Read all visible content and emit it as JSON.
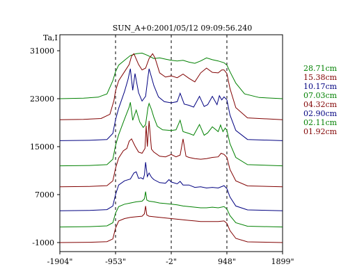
{
  "chart_data": {
    "type": "line",
    "title": "SUN_A+0:2001/05/12 09:09:56.240",
    "ylabel": "Ta,I",
    "xlabel": "",
    "xlim": [
      -1904,
      1899
    ],
    "ylim": [
      -1000,
      31000
    ],
    "x_ticks": [
      -1904,
      -953,
      -2,
      948,
      1899
    ],
    "x_tick_labels": [
      "-1904\"",
      "-953\"",
      "-2\"",
      "948\"",
      "1899\""
    ],
    "y_ticks": [
      -1000,
      7000,
      15000,
      23000,
      31000
    ],
    "y_tick_labels": [
      "-1000",
      "7000",
      "15000",
      "23000",
      "31000"
    ],
    "reference_lines_x": [
      -953,
      -2,
      948
    ],
    "legend_position": "right",
    "series": [
      {
        "name": "28.71cm",
        "color": "#008000",
        "offset": 23000,
        "x": [
          -1904,
          -1500,
          -1250,
          -1100,
          -1000,
          -953,
          -900,
          -800,
          -700,
          -600,
          -500,
          -400,
          -300,
          -200,
          -100,
          -2,
          100,
          200,
          300,
          400,
          500,
          600,
          700,
          800,
          900,
          948,
          1000,
          1100,
          1250,
          1500,
          1899
        ],
        "y": [
          0,
          80,
          250,
          800,
          3000,
          4500,
          5600,
          6400,
          7200,
          7500,
          7600,
          7200,
          6700,
          6800,
          6600,
          6400,
          6300,
          6400,
          6100,
          5900,
          6300,
          6800,
          6500,
          6300,
          6000,
          5600,
          4500,
          2600,
          800,
          200,
          0
        ]
      },
      {
        "name": "15.38cm",
        "color": "#800000",
        "offset": 19500,
        "x": [
          -1904,
          -1500,
          -1200,
          -1050,
          -980,
          -953,
          -900,
          -800,
          -720,
          -680,
          -640,
          -560,
          -500,
          -440,
          -380,
          -320,
          -280,
          -200,
          -100,
          -2,
          100,
          200,
          300,
          400,
          500,
          600,
          700,
          800,
          860,
          900,
          948,
          1000,
          1100,
          1300,
          1899
        ],
        "y": [
          0,
          60,
          200,
          900,
          3200,
          4800,
          6500,
          8000,
          9200,
          10600,
          11000,
          9200,
          8300,
          8600,
          10200,
          11000,
          10300,
          7800,
          7100,
          7300,
          7000,
          7600,
          6900,
          6300,
          7800,
          8600,
          7900,
          7800,
          8300,
          8300,
          7700,
          5200,
          2000,
          300,
          0
        ]
      },
      {
        "name": "10.17cm",
        "color": "#000080",
        "offset": 16000,
        "x": [
          -1904,
          -1400,
          -1100,
          -1000,
          -953,
          -900,
          -800,
          -740,
          -700,
          -660,
          -620,
          -560,
          -500,
          -440,
          -400,
          -380,
          -340,
          -300,
          -220,
          -120,
          -2,
          100,
          150,
          220,
          300,
          380,
          480,
          560,
          620,
          700,
          780,
          820,
          860,
          900,
          948,
          1000,
          1100,
          1300,
          1899
        ],
        "y": [
          0,
          60,
          200,
          1200,
          3500,
          5400,
          8200,
          10200,
          12000,
          8400,
          11200,
          8000,
          6600,
          7400,
          10600,
          12000,
          10600,
          9200,
          7300,
          6500,
          6300,
          6500,
          7900,
          6100,
          5900,
          5600,
          7400,
          5700,
          6000,
          7400,
          6000,
          7500,
          6800,
          7300,
          6800,
          4300,
          1700,
          200,
          0
        ]
      },
      {
        "name": "07.03cm",
        "color": "#008000",
        "offset": 11800,
        "x": [
          -1904,
          -1400,
          -1100,
          -1000,
          -953,
          -900,
          -800,
          -720,
          -700,
          -660,
          -600,
          -540,
          -480,
          -440,
          -400,
          -380,
          -340,
          -300,
          -240,
          -150,
          -2,
          80,
          150,
          200,
          300,
          380,
          480,
          560,
          620,
          700,
          800,
          840,
          880,
          920,
          948,
          1000,
          1100,
          1300,
          1899
        ],
        "y": [
          0,
          60,
          200,
          1100,
          3400,
          5200,
          7800,
          9800,
          10600,
          7600,
          9300,
          7300,
          6400,
          6900,
          9700,
          10400,
          9400,
          8100,
          6600,
          6000,
          5900,
          6000,
          7600,
          5700,
          5400,
          5100,
          6900,
          5100,
          5500,
          6500,
          5700,
          6800,
          5700,
          6300,
          5900,
          3700,
          1400,
          200,
          0
        ]
      },
      {
        "name": "04.32cm",
        "color": "#800000",
        "offset": 8300,
        "x": [
          -1904,
          -1400,
          -1100,
          -1000,
          -953,
          -900,
          -820,
          -760,
          -720,
          -680,
          -620,
          -560,
          -500,
          -450,
          -430,
          -410,
          -380,
          -340,
          -300,
          -200,
          -100,
          -2,
          80,
          150,
          200,
          250,
          300,
          400,
          500,
          600,
          700,
          800,
          850,
          900,
          948,
          1000,
          1100,
          1300,
          1899
        ],
        "y": [
          0,
          60,
          200,
          1000,
          3100,
          4800,
          6000,
          6400,
          7600,
          8000,
          6800,
          5800,
          5600,
          6400,
          10200,
          6700,
          11000,
          6300,
          5800,
          5100,
          5000,
          5400,
          5000,
          5300,
          8000,
          5100,
          4900,
          4700,
          4600,
          4700,
          4900,
          5000,
          5600,
          5400,
          4900,
          2900,
          1000,
          150,
          0
        ]
      },
      {
        "name": "02.90cm",
        "color": "#000080",
        "offset": 4300,
        "x": [
          -1904,
          -1400,
          -1100,
          -1000,
          -953,
          -900,
          -800,
          -700,
          -640,
          -600,
          -560,
          -520,
          -480,
          -460,
          -440,
          -410,
          -380,
          -340,
          -300,
          -200,
          -100,
          -40,
          -2,
          100,
          150,
          200,
          300,
          400,
          500,
          600,
          700,
          800,
          900,
          948,
          1000,
          1100,
          1300,
          1899
        ],
        "y": [
          0,
          60,
          200,
          800,
          2700,
          4300,
          5000,
          5300,
          6300,
          6500,
          5400,
          5500,
          5300,
          6000,
          8100,
          5700,
          6300,
          5600,
          5200,
          4700,
          4600,
          5200,
          4800,
          4500,
          4900,
          4300,
          4300,
          3900,
          4000,
          3800,
          3900,
          3800,
          4200,
          3700,
          2300,
          800,
          150,
          0
        ]
      },
      {
        "name": "02.11cm",
        "color": "#008000",
        "offset": 1600,
        "x": [
          -1904,
          -1400,
          -1100,
          -1000,
          -953,
          -900,
          -800,
          -700,
          -600,
          -500,
          -460,
          -440,
          -420,
          -380,
          -300,
          -200,
          -100,
          -2,
          100,
          200,
          300,
          400,
          500,
          600,
          700,
          800,
          900,
          948,
          1000,
          1100,
          1300,
          1899
        ],
        "y": [
          0,
          50,
          180,
          700,
          2300,
          3400,
          3800,
          4000,
          4200,
          4300,
          4700,
          5900,
          4500,
          4300,
          4200,
          4000,
          3900,
          3800,
          3700,
          3500,
          3400,
          3300,
          3200,
          3200,
          3300,
          3200,
          3400,
          3000,
          1900,
          700,
          120,
          0
        ]
      },
      {
        "name": "01.92cm",
        "color": "#800000",
        "offset": -1000,
        "x": [
          -1904,
          -1400,
          -1100,
          -1000,
          -953,
          -900,
          -800,
          -700,
          -600,
          -500,
          -460,
          -440,
          -420,
          -380,
          -300,
          -200,
          -100,
          -2,
          100,
          200,
          300,
          400,
          500,
          600,
          700,
          800,
          900,
          948,
          1000,
          1100,
          1300,
          1899
        ],
        "y": [
          0,
          50,
          150,
          600,
          2400,
          3600,
          4000,
          4200,
          4300,
          4400,
          4800,
          6100,
          4600,
          4400,
          4300,
          4200,
          4100,
          4000,
          3900,
          3800,
          3700,
          3600,
          3500,
          3500,
          3500,
          3500,
          3600,
          3200,
          2000,
          700,
          120,
          0
        ]
      }
    ]
  }
}
